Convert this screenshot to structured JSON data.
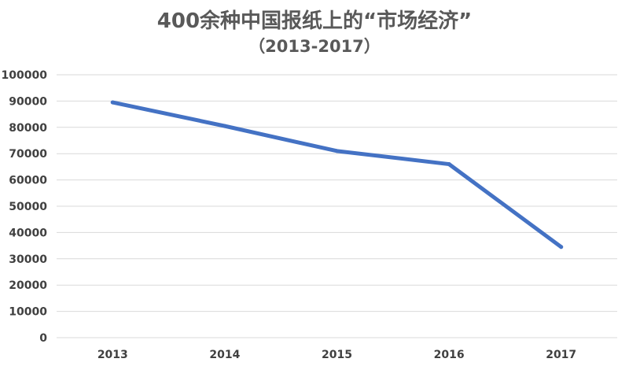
{
  "chart_data": {
    "type": "line",
    "title": "400余种中国报纸上的“市场经济”",
    "subtitle": "（2013-2017）",
    "categories": [
      "2013",
      "2014",
      "2015",
      "2016",
      "2017"
    ],
    "series": [
      {
        "values": [
          89500,
          80500,
          71000,
          66000,
          34500
        ]
      }
    ],
    "ylim": [
      0,
      100000
    ],
    "y_ticks": [
      0,
      10000,
      20000,
      30000,
      40000,
      50000,
      60000,
      70000,
      80000,
      90000,
      100000
    ],
    "grid": true,
    "legend": "none",
    "line_color": "#4472C4",
    "grid_color": "#d9d9d9"
  }
}
